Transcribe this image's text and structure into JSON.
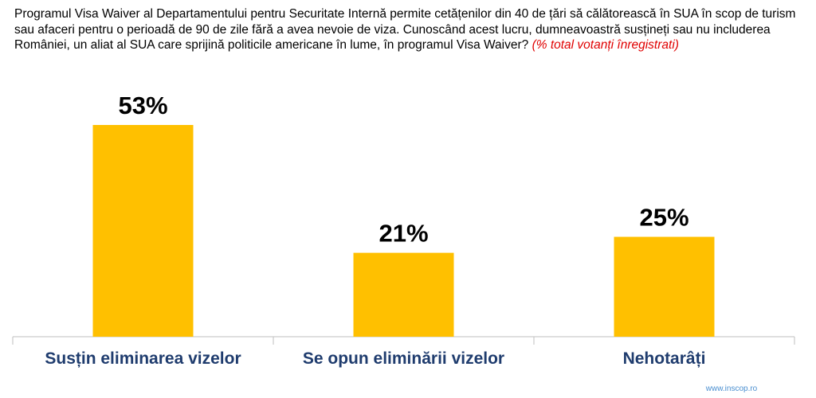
{
  "chart_data": {
    "type": "bar",
    "title": "Programul Visa Waiver al Departamentului pentru Securitate Internă permite cetățenilor din 40 de țări să călătorească în SUA în scop de turism sau afaceri pentru o perioadă de 90 de zile fără a avea nevoie de viza. Cunoscând acest lucru, dumneavoastră susțineți sau nu includerea României, un aliat al SUA care sprijină politicile americane în lume, în programul Visa Waiver?",
    "subtitle": "(% total votanți înregistrati)",
    "categories": [
      "Susțin eliminarea vizelor",
      "Se opun eliminării vizelor",
      "Nehotarâți"
    ],
    "values": [
      53,
      21,
      25
    ],
    "value_labels": [
      "53%",
      "21%",
      "25%"
    ],
    "color": "#ffc000",
    "source": "www.inscop.ro"
  }
}
